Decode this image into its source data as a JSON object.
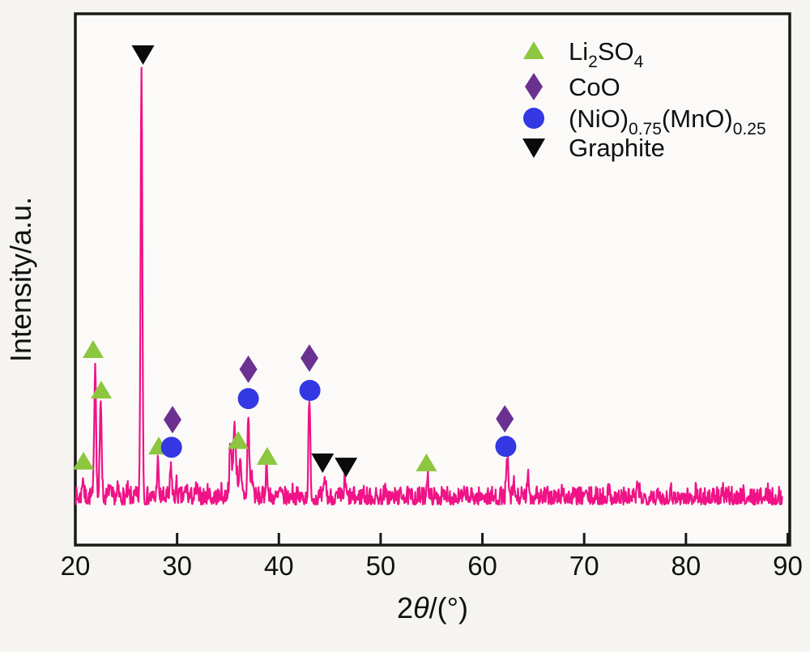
{
  "chart_data": {
    "type": "line",
    "subtype": "xrd-pattern",
    "title": "",
    "xlabel_parts": [
      {
        "t": "2"
      },
      {
        "t": "θ",
        "italic": true
      },
      {
        "t": "/(°)"
      }
    ],
    "ylabel": "Intensity/a.u.",
    "x_ticks": [
      20,
      30,
      40,
      50,
      60,
      70,
      80,
      90
    ],
    "xlim": [
      20,
      90.2
    ],
    "ylim_units": [
      -100,
      1133
    ],
    "grid": false,
    "legend_position": "top-right",
    "colors": {
      "trace": "#F01286",
      "li2so4": "#8DC63F",
      "coo": "#6B3191",
      "nio_mno": "#3338E2",
      "graphite": "#0B0B0B",
      "axis": "#1a1a1a"
    },
    "series": [
      {
        "name": "XRD pattern",
        "color": "#F01286",
        "x_start": 20.0,
        "x_end": 89.45,
        "x_step": 0.05,
        "noise": {
          "base": -6,
          "amplitude": 42,
          "seed": 7,
          "spike_exponent": 1.5
        },
        "peaks": [
          [
            20.75,
            52,
            0.08
          ],
          [
            21.95,
            318,
            0.09
          ],
          [
            22.5,
            232,
            0.09
          ],
          [
            23.35,
            26,
            0.07
          ],
          [
            24.2,
            18,
            0.07
          ],
          [
            25.15,
            14,
            0.07
          ],
          [
            26.5,
            1000,
            0.085
          ],
          [
            28.1,
            82,
            0.08
          ],
          [
            29.4,
            76,
            0.08
          ],
          [
            29.95,
            28,
            0.07
          ],
          [
            30.9,
            24,
            0.1
          ],
          [
            31.9,
            18,
            0.09
          ],
          [
            33.1,
            14,
            0.09
          ],
          [
            34.3,
            11,
            0.08
          ],
          [
            35.25,
            92,
            0.1
          ],
          [
            35.65,
            118,
            0.12
          ],
          [
            35.7,
            42,
            0.45
          ],
          [
            36.2,
            52,
            0.09
          ],
          [
            37.0,
            188,
            0.09
          ],
          [
            37.35,
            48,
            0.13
          ],
          [
            38.8,
            78,
            0.09
          ],
          [
            40.1,
            20,
            0.08
          ],
          [
            41.3,
            13,
            0.08
          ],
          [
            43.0,
            220,
            0.09
          ],
          [
            44.55,
            46,
            0.09
          ],
          [
            46.5,
            38,
            0.09
          ],
          [
            48.3,
            16,
            0.08
          ],
          [
            50.4,
            12,
            0.08
          ],
          [
            52.2,
            11,
            0.08
          ],
          [
            54.6,
            55,
            0.09
          ],
          [
            56.6,
            12,
            0.08
          ],
          [
            58.4,
            11,
            0.08
          ],
          [
            60.1,
            11,
            0.08
          ],
          [
            62.45,
            86,
            0.1
          ],
          [
            63.1,
            30,
            0.09
          ],
          [
            64.5,
            42,
            0.1
          ],
          [
            65.3,
            18,
            0.09
          ],
          [
            67.9,
            16,
            0.1
          ],
          [
            70.1,
            12,
            0.09
          ],
          [
            72.4,
            15,
            0.11
          ],
          [
            75.3,
            20,
            0.12
          ],
          [
            76.6,
            13,
            0.09
          ],
          [
            78.5,
            15,
            0.11
          ],
          [
            81.0,
            13,
            0.11
          ],
          [
            83.6,
            11,
            0.1
          ],
          [
            85.6,
            9,
            0.09
          ],
          [
            88.0,
            9,
            0.09
          ]
        ]
      }
    ],
    "phase_markers": [
      {
        "phase": "Li2SO4",
        "marker": "triangle-up",
        "color": "#8DC63F",
        "points": [
          [
            20.8,
            94
          ],
          [
            21.75,
            353
          ],
          [
            22.55,
            259
          ],
          [
            28.2,
            129
          ],
          [
            36.0,
            142
          ],
          [
            38.85,
            105
          ],
          [
            54.5,
            90
          ]
        ]
      },
      {
        "phase": "CoO",
        "marker": "diamond",
        "color": "#6B3191",
        "points": [
          [
            29.55,
            191
          ],
          [
            37.0,
            308
          ],
          [
            43.0,
            334
          ],
          [
            62.2,
            193
          ]
        ]
      },
      {
        "phase": "(NiO)0.75(MnO)0.25",
        "marker": "circle",
        "color": "#3338E2",
        "points": [
          [
            29.45,
            127
          ],
          [
            37.0,
            240
          ],
          [
            43.05,
            259
          ],
          [
            62.3,
            129
          ]
        ]
      },
      {
        "phase": "Graphite",
        "marker": "triangle-down",
        "color": "#0B0B0B",
        "points": [
          [
            26.65,
            1039
          ],
          [
            44.3,
            92
          ],
          [
            46.6,
            82
          ]
        ]
      }
    ],
    "legend": [
      {
        "marker": "triangle-up",
        "color": "#8DC63F",
        "label_parts": [
          {
            "t": "Li"
          },
          {
            "t": "2",
            "sub": true
          },
          {
            "t": "SO"
          },
          {
            "t": "4",
            "sub": true
          }
        ]
      },
      {
        "marker": "diamond",
        "color": "#6B3191",
        "label_parts": [
          {
            "t": "CoO"
          }
        ]
      },
      {
        "marker": "circle",
        "color": "#3338E2",
        "label_parts": [
          {
            "t": "(NiO)"
          },
          {
            "t": "0.75",
            "sub": true
          },
          {
            "t": "(MnO)"
          },
          {
            "t": "0.25",
            "sub": true
          }
        ]
      },
      {
        "marker": "triangle-down",
        "color": "#0B0B0B",
        "label_parts": [
          {
            "t": "Graphite"
          }
        ]
      }
    ]
  }
}
